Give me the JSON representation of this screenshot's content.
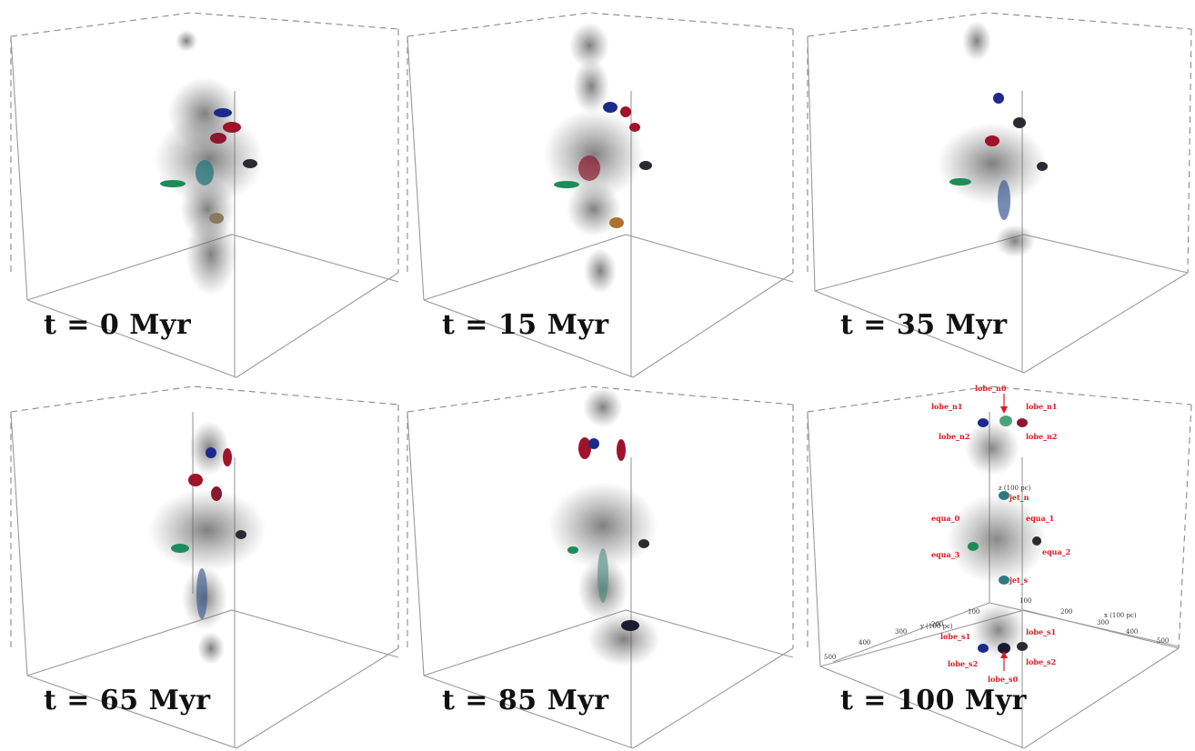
{
  "panels": [
    {
      "label": "t = 0 Myr"
    },
    {
      "label": "t = 15 Myr"
    },
    {
      "label": "t = 35 Myr"
    },
    {
      "label": "t = 65 Myr"
    },
    {
      "label": "t = 85 Myr"
    },
    {
      "label": "t = 100 Myr"
    }
  ],
  "annotations": {
    "lobe_n0": "lobe_n0",
    "lobe_n1_left": "lobe_n1",
    "lobe_n1_right": "lobe_n1",
    "lobe_n2_left": "lobe_n2",
    "lobe_n2_right": "lobe_n2",
    "equa_0": "equa_0",
    "equa_1": "equa_1",
    "equa_2": "equa_2",
    "equa_3": "equa_3",
    "jet_n": "jet_n",
    "jet_s": "jet_s",
    "lobe_s0": "lobe_s0",
    "lobe_s1_left": "lobe_s1",
    "lobe_s1_right": "lobe_s1",
    "lobe_s2_left": "lobe_s2",
    "lobe_s2_right": "lobe_s2",
    "z_axis": "z (100 pc)",
    "x_axis": "x (100 pc)",
    "y_axis": "y (100 pc)",
    "ticks": [
      "100",
      "200",
      "300",
      "400",
      "500"
    ]
  },
  "colors": {
    "blue": "#1d2a8c",
    "red": "#a0132a",
    "green": "#1f8a5a",
    "teal": "#2d7a80",
    "dark": "#2a2a33",
    "annotation": "#e0181e"
  }
}
